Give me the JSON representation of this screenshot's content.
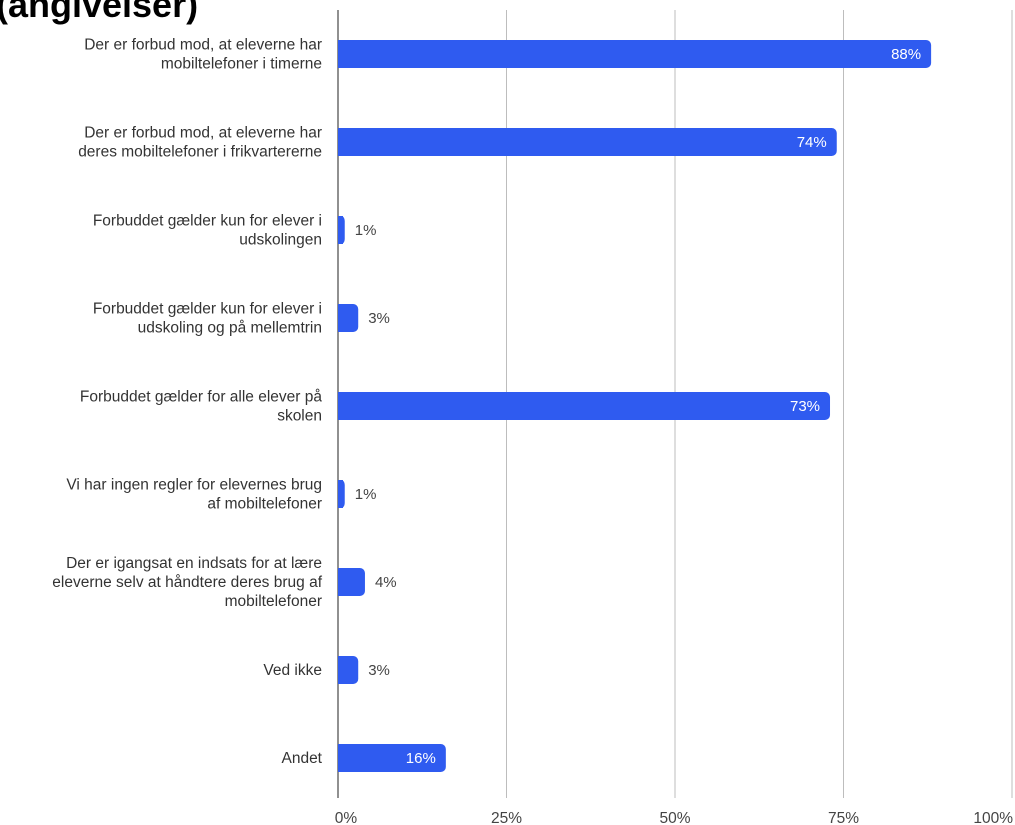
{
  "header": {
    "title_fragment": "(angivelser)"
  },
  "colors": {
    "bar": "#2f5bf0",
    "grid": "#bdbdbd",
    "axis": "#555555",
    "label_inside": "#ffffff",
    "label_outside": "#444444"
  },
  "chart_data": {
    "type": "bar",
    "orientation": "horizontal",
    "categories": [
      [
        "Der er forbud mod, at eleverne har",
        "mobiltelefoner i timerne"
      ],
      [
        "Der er forbud mod, at eleverne har",
        "deres mobiltelefoner i frikvartererne"
      ],
      [
        "Forbuddet gælder kun for elever i",
        "udskolingen"
      ],
      [
        "Forbuddet gælder kun for elever i",
        "udskoling og på mellemtrin"
      ],
      [
        "Forbuddet gælder for alle elever på",
        "skolen"
      ],
      [
        "Vi har ingen regler for elevernes brug",
        "af mobiltelefoner"
      ],
      [
        "Der er igangsat en indsats for at lære",
        "eleverne selv at håndtere deres brug af",
        "mobiltelefoner"
      ],
      [
        "Ved ikke"
      ],
      [
        "Andet"
      ]
    ],
    "values": [
      88,
      74,
      1,
      3,
      73,
      1,
      4,
      3,
      16
    ],
    "value_labels": [
      "88%",
      "74%",
      "1%",
      "3%",
      "73%",
      "1%",
      "4%",
      "3%",
      "16%"
    ],
    "xlim": [
      0,
      100
    ],
    "xticks": [
      0,
      25,
      50,
      75,
      100
    ],
    "xtick_labels": [
      "0%",
      "25%",
      "50%",
      "75%",
      "100%"
    ],
    "grid": true,
    "legend": "none"
  }
}
